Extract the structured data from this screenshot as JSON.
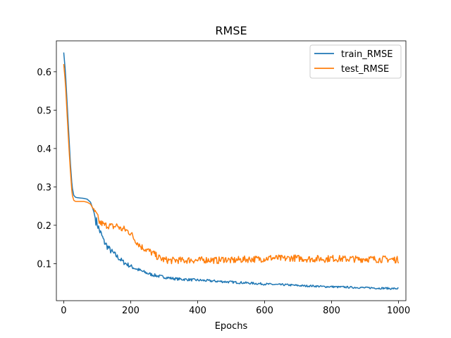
{
  "chart_data": {
    "type": "line",
    "title": "RMSE",
    "xlabel": "Epochs",
    "ylabel": "",
    "xlim": [
      -22,
      1022
    ],
    "ylim": [
      0.0035,
      0.6805
    ],
    "xticks": [
      0,
      200,
      400,
      600,
      800,
      1000
    ],
    "yticks": [
      0.1,
      0.2,
      0.3,
      0.4,
      0.5,
      0.6
    ],
    "xtick_labels": [
      "0",
      "200",
      "400",
      "600",
      "800",
      "1000"
    ],
    "ytick_labels": [
      "0.1",
      "0.2",
      "0.3",
      "0.4",
      "0.5",
      "0.6"
    ],
    "legend_position": "top-right",
    "grid": false,
    "series": [
      {
        "name": "train_RMSE",
        "color": "#1f77b4",
        "x": [
          0,
          5,
          10,
          15,
          20,
          25,
          30,
          35,
          40,
          50,
          60,
          70,
          80,
          90,
          95,
          100,
          105,
          110,
          115,
          120,
          130,
          140,
          150,
          160,
          170,
          180,
          190,
          200,
          220,
          240,
          260,
          280,
          300,
          320,
          340,
          360,
          380,
          400,
          420,
          440,
          460,
          480,
          500,
          520,
          540,
          560,
          580,
          600,
          620,
          640,
          660,
          680,
          700,
          720,
          740,
          760,
          780,
          800,
          820,
          840,
          860,
          880,
          900,
          920,
          940,
          960,
          980,
          1000
        ],
        "y": [
          0.65,
          0.6,
          0.52,
          0.44,
          0.36,
          0.3,
          0.278,
          0.273,
          0.272,
          0.271,
          0.27,
          0.268,
          0.26,
          0.235,
          0.215,
          0.205,
          0.19,
          0.18,
          0.17,
          0.158,
          0.145,
          0.134,
          0.126,
          0.118,
          0.11,
          0.103,
          0.098,
          0.093,
          0.085,
          0.078,
          0.072,
          0.068,
          0.065,
          0.062,
          0.06,
          0.059,
          0.058,
          0.057,
          0.056,
          0.055,
          0.054,
          0.053,
          0.052,
          0.051,
          0.05,
          0.049,
          0.048,
          0.047,
          0.046,
          0.045,
          0.045,
          0.044,
          0.043,
          0.042,
          0.042,
          0.041,
          0.04,
          0.04,
          0.039,
          0.039,
          0.038,
          0.038,
          0.037,
          0.037,
          0.036,
          0.036,
          0.035,
          0.035
        ]
      },
      {
        "name": "test_RMSE",
        "color": "#ff7f0e",
        "x": [
          0,
          5,
          10,
          15,
          20,
          25,
          30,
          35,
          40,
          50,
          60,
          70,
          80,
          90,
          95,
          100,
          105,
          110,
          115,
          120,
          130,
          140,
          150,
          160,
          170,
          180,
          190,
          200,
          210,
          220,
          230,
          240,
          250,
          260,
          270,
          280,
          290,
          300,
          320,
          340,
          360,
          380,
          400,
          420,
          440,
          460,
          480,
          500,
          520,
          540,
          560,
          580,
          600,
          620,
          640,
          660,
          680,
          700,
          720,
          740,
          760,
          780,
          800,
          820,
          840,
          860,
          880,
          900,
          920,
          940,
          960,
          980,
          1000
        ],
        "y": [
          0.62,
          0.57,
          0.49,
          0.41,
          0.34,
          0.28,
          0.265,
          0.262,
          0.262,
          0.262,
          0.262,
          0.26,
          0.255,
          0.24,
          0.23,
          0.225,
          0.21,
          0.205,
          0.205,
          0.2,
          0.2,
          0.198,
          0.196,
          0.2,
          0.19,
          0.19,
          0.185,
          0.18,
          0.165,
          0.155,
          0.145,
          0.14,
          0.135,
          0.13,
          0.125,
          0.118,
          0.113,
          0.11,
          0.108,
          0.109,
          0.108,
          0.11,
          0.108,
          0.11,
          0.11,
          0.108,
          0.112,
          0.108,
          0.11,
          0.111,
          0.112,
          0.112,
          0.113,
          0.115,
          0.114,
          0.113,
          0.115,
          0.114,
          0.113,
          0.112,
          0.113,
          0.112,
          0.114,
          0.113,
          0.112,
          0.113,
          0.111,
          0.113,
          0.112,
          0.111,
          0.112,
          0.111,
          0.11
        ]
      }
    ]
  }
}
